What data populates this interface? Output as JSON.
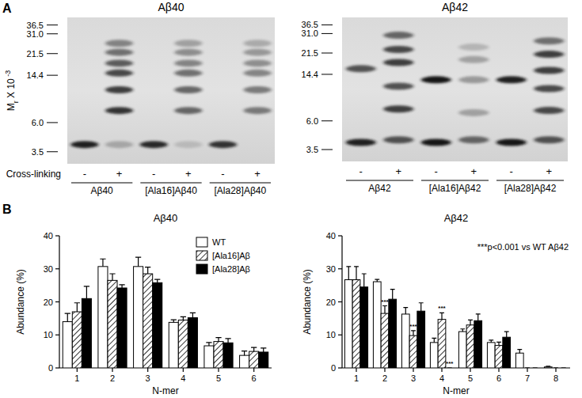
{
  "panel_labels": [
    "A",
    "B"
  ],
  "gels": [
    {
      "title": "Aβ40",
      "y_label": {
        "main": "M",
        "sub": "r",
        "rest": " X 10",
        "sup": " -3"
      },
      "ylim": [
        2.8,
        42
      ],
      "yticks": [
        36.5,
        {
          "value": 31,
          "label": "31.0"
        },
        21.5,
        14.4,
        {
          "value": 6,
          "label": "6.0"
        },
        3.5
      ],
      "cross_linking_label": "Cross-linking",
      "groups": [
        "Aβ40",
        "[Ala16]Aβ40",
        "[Ala28]Aβ40"
      ],
      "lanes": [
        {
          "cross_linking": "-",
          "bands": [
            {
              "mr": 4.0,
              "intensity": 0.95
            }
          ]
        },
        {
          "cross_linking": "+",
          "bands": [
            {
              "mr": 4.0,
              "intensity": 0.25
            },
            {
              "mr": 7.5,
              "intensity": 0.85
            },
            {
              "mr": 11,
              "intensity": 0.8
            },
            {
              "mr": 15,
              "intensity": 0.75
            },
            {
              "mr": 18,
              "intensity": 0.65
            },
            {
              "mr": 22,
              "intensity": 0.55
            },
            {
              "mr": 26,
              "intensity": 0.45
            }
          ]
        },
        {
          "cross_linking": "-",
          "bands": [
            {
              "mr": 4.0,
              "intensity": 0.9
            }
          ]
        },
        {
          "cross_linking": "+",
          "bands": [
            {
              "mr": 4.0,
              "intensity": 0.15
            },
            {
              "mr": 7.5,
              "intensity": 0.6
            },
            {
              "mr": 11,
              "intensity": 0.6
            },
            {
              "mr": 15,
              "intensity": 0.55
            },
            {
              "mr": 18,
              "intensity": 0.45
            },
            {
              "mr": 22,
              "intensity": 0.4
            },
            {
              "mr": 26,
              "intensity": 0.3
            }
          ]
        },
        {
          "cross_linking": "-",
          "bands": [
            {
              "mr": 4.0,
              "intensity": 0.85
            }
          ]
        },
        {
          "cross_linking": "+",
          "bands": [
            {
              "mr": 7.5,
              "intensity": 0.5
            },
            {
              "mr": 11,
              "intensity": 0.5
            },
            {
              "mr": 15,
              "intensity": 0.45
            },
            {
              "mr": 18,
              "intensity": 0.4
            },
            {
              "mr": 22,
              "intensity": 0.35
            },
            {
              "mr": 26,
              "intensity": 0.25
            }
          ]
        }
      ]
    },
    {
      "title": "Aβ42",
      "ylim": [
        2.8,
        42
      ],
      "yticks": [
        36.5,
        {
          "value": 31,
          "label": "31.0"
        },
        21.5,
        14.4,
        {
          "value": 6,
          "label": "6.0"
        },
        3.5
      ],
      "groups": [
        "Aβ42",
        "[Ala16]Aβ42",
        "[Ala28]Aβ42"
      ],
      "lanes": [
        {
          "cross_linking": "-",
          "bands": [
            {
              "mr": 4.0,
              "intensity": 0.95
            },
            {
              "mr": 16,
              "intensity": 0.7
            }
          ]
        },
        {
          "cross_linking": "+",
          "bands": [
            {
              "mr": 4.2,
              "intensity": 0.7
            },
            {
              "mr": 7.5,
              "intensity": 0.8
            },
            {
              "mr": 11.5,
              "intensity": 0.7
            },
            {
              "mr": 18,
              "intensity": 0.8
            },
            {
              "mr": 23,
              "intensity": 0.75
            },
            {
              "mr": 30,
              "intensity": 0.6
            }
          ]
        },
        {
          "cross_linking": "-",
          "bands": [
            {
              "mr": 4.0,
              "intensity": 1
            },
            {
              "mr": 13,
              "intensity": 1
            }
          ]
        },
        {
          "cross_linking": "+",
          "bands": [
            {
              "mr": 4.2,
              "intensity": 0.6
            },
            {
              "mr": 7,
              "intensity": 0.3
            },
            {
              "mr": 13,
              "intensity": 0.35
            },
            {
              "mr": 19,
              "intensity": 0.3
            },
            {
              "mr": 24,
              "intensity": 0.2
            }
          ]
        },
        {
          "cross_linking": "-",
          "bands": [
            {
              "mr": 4.0,
              "intensity": 1
            },
            {
              "mr": 13,
              "intensity": 0.95
            }
          ]
        },
        {
          "cross_linking": "+",
          "bands": [
            {
              "mr": 4.2,
              "intensity": 0.7
            },
            {
              "mr": 7.3,
              "intensity": 0.75
            },
            {
              "mr": 11,
              "intensity": 0.75
            },
            {
              "mr": 15.5,
              "intensity": 0.8
            },
            {
              "mr": 21,
              "intensity": 0.8
            },
            {
              "mr": 27,
              "intensity": 0.55
            }
          ]
        }
      ]
    }
  ],
  "chart_data": [
    {
      "type": "bar",
      "title": "Aβ40",
      "x_label": "N-mer",
      "y_label": "Abundance (%)",
      "categories": [
        "1",
        "2",
        "3",
        "4",
        "5",
        "6"
      ],
      "ylim": [
        0,
        40
      ],
      "yticks": [
        0,
        10,
        20,
        30,
        40
      ],
      "legend": "upper right",
      "series": [
        {
          "name": "WT",
          "color": "#ffffff",
          "values": [
            14,
            30.7,
            30.7,
            13.8,
            6.7,
            3.8
          ],
          "errors": [
            2.5,
            2.3,
            2.8,
            0.8,
            1,
            1.3
          ]
        },
        {
          "name": "[Ala16]Aβ",
          "color": "#ffffff",
          "marker": "hatch",
          "values": [
            17,
            26.5,
            28.5,
            14.5,
            8,
            5
          ],
          "errors": [
            2.7,
            2,
            2,
            1,
            1.2,
            1.2
          ]
        },
        {
          "name": "[Ala28]Aβ",
          "color": "#000000",
          "values": [
            21,
            24.2,
            25.8,
            15.2,
            7.6,
            4.8
          ],
          "errors": [
            3.7,
            1,
            1,
            1.5,
            1.3,
            1.2
          ]
        }
      ]
    },
    {
      "type": "bar",
      "title": "Aβ42",
      "x_label": "N-mer",
      "y_label": "Abundance (%)",
      "annotation": "***p<0.001 vs WT Aβ42",
      "categories": [
        "1",
        "2",
        "3",
        "4",
        "5",
        "6",
        "7",
        "8"
      ],
      "ylim": [
        0,
        40
      ],
      "yticks": [
        0,
        10,
        20,
        30,
        40
      ],
      "series": [
        {
          "color": "#ffffff",
          "values": [
            26.7,
            26.1,
            16.3,
            7.7,
            11,
            7.7,
            4.5,
            0.3
          ],
          "errors": [
            4,
            0.7,
            2,
            1.3,
            0.8,
            0.7,
            1.1,
            0.2
          ]
        },
        {
          "color": "#ffffff",
          "marker": "hatch",
          "values": [
            26.7,
            16.5,
            9.8,
            14.7,
            13,
            6.8,
            0,
            0
          ],
          "errors": [
            4,
            2.3,
            1.5,
            2,
            1.5,
            1,
            0,
            0
          ],
          "significance": [
            null,
            "***",
            "***",
            "***",
            null,
            null,
            null,
            null
          ]
        },
        {
          "color": "#000000",
          "values": [
            24.5,
            20.8,
            17.2,
            0,
            14.3,
            9.3,
            0,
            0
          ],
          "errors": [
            4,
            3,
            2.5,
            0,
            2,
            1.7,
            0,
            0
          ],
          "significance": [
            null,
            null,
            null,
            "***",
            null,
            null,
            null,
            null
          ]
        }
      ]
    }
  ]
}
